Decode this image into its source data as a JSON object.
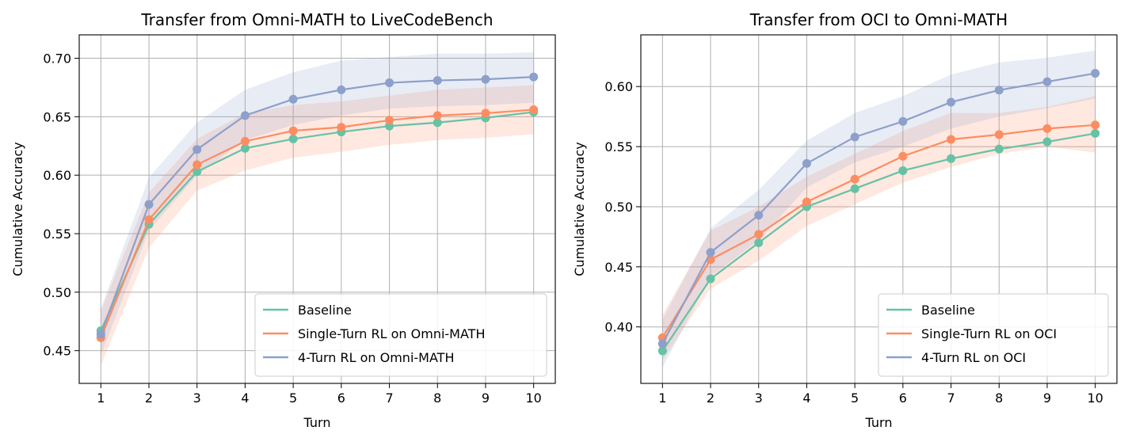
{
  "chart_data": [
    {
      "type": "line",
      "title": "Transfer from Omni-MATH to LiveCodeBench",
      "xlabel": "Turn",
      "ylabel": "Cumulative Accuracy",
      "x": [
        1,
        2,
        3,
        4,
        5,
        6,
        7,
        8,
        9,
        10
      ],
      "xlim": [
        0.55,
        10.45
      ],
      "ylim": [
        0.422,
        0.72
      ],
      "yticks": [
        0.45,
        0.5,
        0.55,
        0.6,
        0.65,
        0.7
      ],
      "ytick_labels": [
        "0.45",
        "0.50",
        "0.55",
        "0.60",
        "0.65",
        "0.70"
      ],
      "xtick_labels": [
        "1",
        "2",
        "3",
        "4",
        "5",
        "6",
        "7",
        "8",
        "9",
        "10"
      ],
      "grid": true,
      "legend": "lower-right",
      "series": [
        {
          "name": "Baseline",
          "color": "#66c2a5",
          "values": [
            0.467,
            0.558,
            0.603,
            0.623,
            0.631,
            0.637,
            0.642,
            0.645,
            0.649,
            0.654
          ]
        },
        {
          "name": "Single-Turn RL on Omni-MATH",
          "color": "#fc8d62",
          "values": [
            0.461,
            0.562,
            0.609,
            0.629,
            0.638,
            0.641,
            0.647,
            0.651,
            0.653,
            0.656
          ],
          "band_lower": [
            0.437,
            0.538,
            0.587,
            0.604,
            0.615,
            0.62,
            0.626,
            0.63,
            0.632,
            0.635
          ],
          "band_upper": [
            0.484,
            0.585,
            0.631,
            0.653,
            0.66,
            0.663,
            0.668,
            0.673,
            0.675,
            0.677
          ]
        },
        {
          "name": "4-Turn RL on Omni-MATH",
          "color": "#8da0cb",
          "values": [
            0.464,
            0.575,
            0.622,
            0.651,
            0.665,
            0.673,
            0.679,
            0.681,
            0.682,
            0.684
          ],
          "band_lower": [
            0.446,
            0.553,
            0.6,
            0.63,
            0.643,
            0.651,
            0.657,
            0.659,
            0.66,
            0.662
          ],
          "band_upper": [
            0.486,
            0.598,
            0.645,
            0.673,
            0.688,
            0.698,
            0.701,
            0.704,
            0.704,
            0.705
          ]
        }
      ]
    },
    {
      "type": "line",
      "title": "Transfer from OCI to Omni-MATH",
      "xlabel": "Turn",
      "ylabel": "Cumulative Accuracy",
      "x": [
        1,
        2,
        3,
        4,
        5,
        6,
        7,
        8,
        9,
        10
      ],
      "xlim": [
        0.55,
        10.45
      ],
      "ylim": [
        0.353,
        0.643
      ],
      "yticks": [
        0.4,
        0.45,
        0.5,
        0.55,
        0.6
      ],
      "ytick_labels": [
        "0.40",
        "0.45",
        "0.50",
        "0.55",
        "0.60"
      ],
      "xtick_labels": [
        "1",
        "2",
        "3",
        "4",
        "5",
        "6",
        "7",
        "8",
        "9",
        "10"
      ],
      "grid": true,
      "legend": "lower-right",
      "series": [
        {
          "name": "Baseline",
          "color": "#66c2a5",
          "values": [
            0.38,
            0.44,
            0.47,
            0.5,
            0.515,
            0.53,
            0.54,
            0.548,
            0.554,
            0.561
          ]
        },
        {
          "name": "Single-Turn RL on OCI",
          "color": "#fc8d62",
          "values": [
            0.391,
            0.456,
            0.477,
            0.504,
            0.523,
            0.542,
            0.556,
            0.56,
            0.565,
            0.568
          ],
          "band_lower": [
            0.372,
            0.432,
            0.455,
            0.484,
            0.502,
            0.52,
            0.533,
            0.544,
            0.55,
            0.545
          ],
          "band_upper": [
            0.41,
            0.48,
            0.5,
            0.525,
            0.544,
            0.563,
            0.578,
            0.578,
            0.583,
            0.592
          ]
        },
        {
          "name": "4-Turn RL on OCI",
          "color": "#8da0cb",
          "values": [
            0.386,
            0.462,
            0.493,
            0.536,
            0.558,
            0.571,
            0.587,
            0.597,
            0.604,
            0.611
          ],
          "band_lower": [
            0.366,
            0.442,
            0.472,
            0.516,
            0.537,
            0.55,
            0.565,
            0.575,
            0.582,
            0.59
          ],
          "band_upper": [
            0.406,
            0.482,
            0.514,
            0.555,
            0.578,
            0.592,
            0.61,
            0.62,
            0.624,
            0.63
          ]
        }
      ]
    }
  ]
}
